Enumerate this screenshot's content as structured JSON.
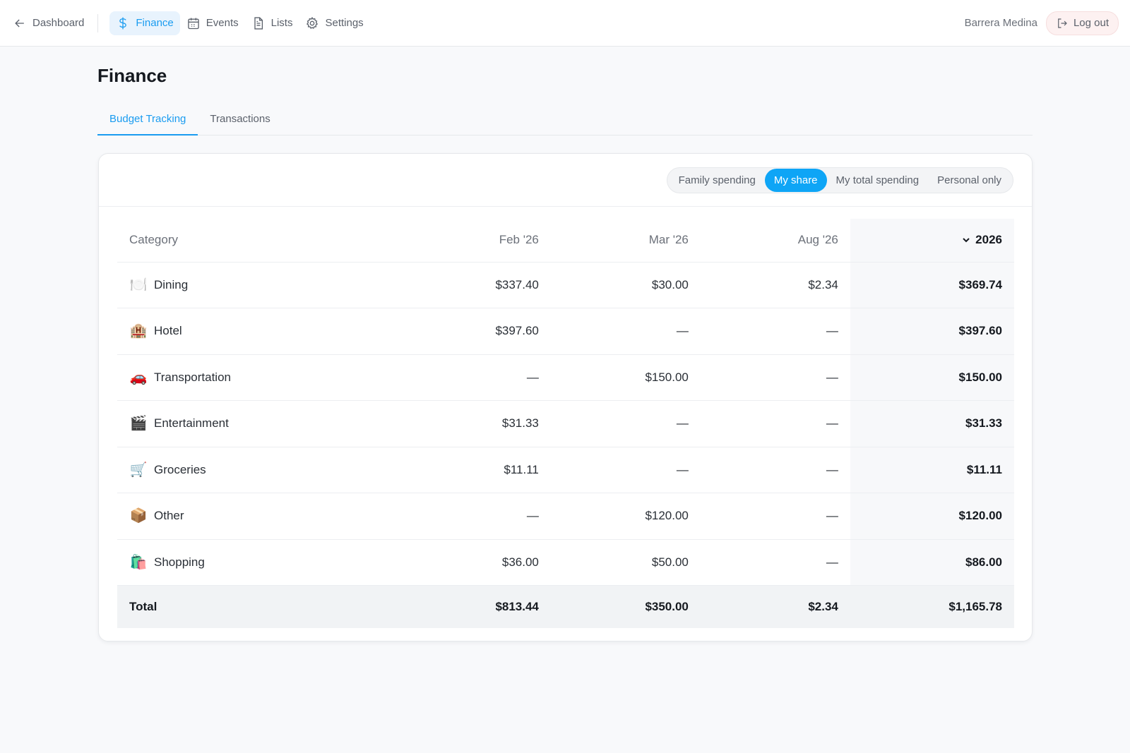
{
  "nav": {
    "back_label": "Dashboard",
    "items": [
      {
        "label": "Finance",
        "icon": "dollar-icon",
        "active": true
      },
      {
        "label": "Events",
        "icon": "calendar-icon",
        "active": false
      },
      {
        "label": "Lists",
        "icon": "document-icon",
        "active": false
      },
      {
        "label": "Settings",
        "icon": "gear-icon",
        "active": false
      }
    ],
    "username": "Barrera Medina",
    "logout_label": "Log out"
  },
  "page": {
    "title": "Finance",
    "tabs": [
      {
        "label": "Budget Tracking",
        "active": true
      },
      {
        "label": "Transactions",
        "active": false
      }
    ]
  },
  "filters": {
    "options": [
      "Family spending",
      "My share",
      "My total spending",
      "Personal only"
    ],
    "selected": "My share"
  },
  "table": {
    "headers": {
      "category": "Category",
      "months": [
        "Feb '26",
        "Mar '26",
        "Aug '26"
      ],
      "year": "2026"
    },
    "rows": [
      {
        "emoji": "🍽️",
        "category": "Dining",
        "values": [
          "$337.40",
          "$30.00",
          "$2.34"
        ],
        "total": "$369.74"
      },
      {
        "emoji": "🏨",
        "category": "Hotel",
        "values": [
          "$397.60",
          "—",
          "—"
        ],
        "total": "$397.60"
      },
      {
        "emoji": "🚗",
        "category": "Transportation",
        "values": [
          "—",
          "$150.00",
          "—"
        ],
        "total": "$150.00"
      },
      {
        "emoji": "🎬",
        "category": "Entertainment",
        "values": [
          "$31.33",
          "—",
          "—"
        ],
        "total": "$31.33"
      },
      {
        "emoji": "🛒",
        "category": "Groceries",
        "values": [
          "$11.11",
          "—",
          "—"
        ],
        "total": "$11.11"
      },
      {
        "emoji": "📦",
        "category": "Other",
        "values": [
          "—",
          "$120.00",
          "—"
        ],
        "total": "$120.00"
      },
      {
        "emoji": "🛍️",
        "category": "Shopping",
        "values": [
          "$36.00",
          "$50.00",
          "—"
        ],
        "total": "$86.00"
      }
    ],
    "total_row": {
      "label": "Total",
      "values": [
        "$813.44",
        "$350.00",
        "$2.34"
      ],
      "total": "$1,165.78"
    }
  },
  "colors": {
    "accent": "#1a9cf0",
    "segment_active": "#0ea5f6",
    "logout_bg": "#fdf1f1"
  }
}
